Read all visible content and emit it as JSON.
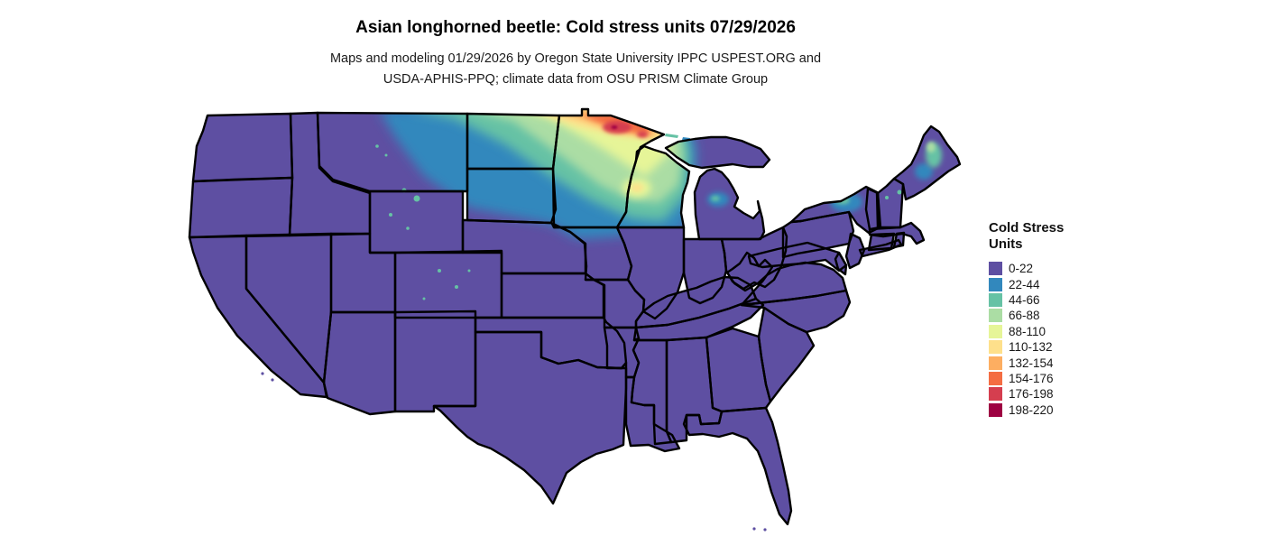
{
  "header": {
    "title": "Asian longhorned beetle: Cold stress units 07/29/2026",
    "subtitle_line1": "Maps and modeling 01/29/2026 by Oregon State University IPPC USPEST.ORG and",
    "subtitle_line2": "USDA-APHIS-PPQ; climate data from OSU PRISM Climate Group"
  },
  "legend": {
    "title_line1": "Cold Stress",
    "title_line2": "Units",
    "items": [
      {
        "label": "0-22",
        "color": "#5e4fa2"
      },
      {
        "label": "22-44",
        "color": "#3288bd"
      },
      {
        "label": "44-66",
        "color": "#66c2a5"
      },
      {
        "label": "66-88",
        "color": "#abdda4"
      },
      {
        "label": "88-110",
        "color": "#e6f598"
      },
      {
        "label": "110-132",
        "color": "#fee08b"
      },
      {
        "label": "132-154",
        "color": "#fdae61"
      },
      {
        "label": "154-176",
        "color": "#f46d43"
      },
      {
        "label": "176-198",
        "color": "#d53e4f"
      },
      {
        "label": "198-220",
        "color": "#9e0142"
      }
    ]
  },
  "map": {
    "region": "Contiguous United States",
    "base_color": "#5e4fa2",
    "border_color": "#000000",
    "background_color": "#ffffff"
  },
  "chart_data": {
    "type": "heatmap",
    "title": "Asian longhorned beetle: Cold stress units 07/29/2026",
    "variable": "Cold Stress Units",
    "date": "07/29/2026",
    "classes": [
      "0-22",
      "22-44",
      "44-66",
      "66-88",
      "88-110",
      "110-132",
      "132-154",
      "154-176",
      "176-198",
      "198-220"
    ],
    "class_colors": [
      "#5e4fa2",
      "#3288bd",
      "#66c2a5",
      "#abdda4",
      "#e6f598",
      "#fee08b",
      "#fdae61",
      "#f46d43",
      "#d53e4f",
      "#9e0142"
    ],
    "legend_position": "right",
    "regions": [
      {
        "area": "Most of the contiguous US",
        "value": "0-22"
      },
      {
        "area": "Northern Great Plains band (NE Montana, Dakotas, southern Minnesota, northern Iowa, southern Wisconsin)",
        "value": "22-44"
      },
      {
        "area": "Central North Dakota, central Minnesota, interior Wisconsin, western Upper Peninsula of Michigan",
        "value": "44-88"
      },
      {
        "area": "Northeastern North Dakota and northwest-central Minnesota",
        "value": "88-132"
      },
      {
        "area": "Far northern Minnesota (hotspot near Canadian border)",
        "value": "132-198"
      },
      {
        "area": "Adirondacks region of northern New York",
        "value": "22-66"
      },
      {
        "area": "Northern Maine and northern New Hampshire / Vermont specks",
        "value": "22-88"
      },
      {
        "area": "Lower Michigan interior patch",
        "value": "22-44"
      }
    ]
  }
}
